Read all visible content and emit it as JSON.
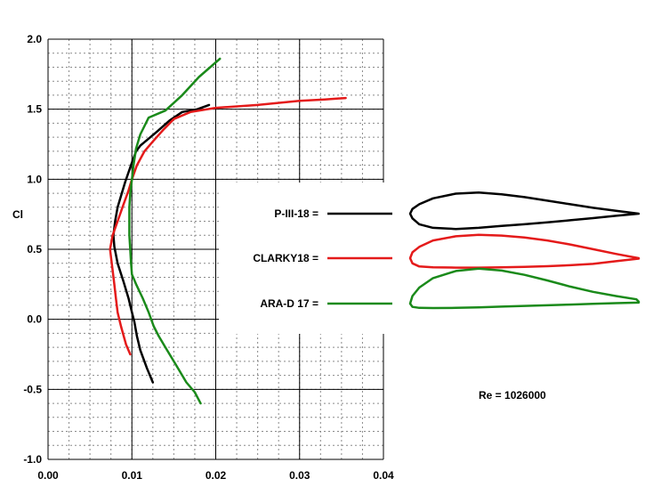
{
  "chart_data": {
    "type": "line",
    "title": "",
    "xlabel": "",
    "ylabel": "Cl",
    "xlim": [
      0,
      0.04
    ],
    "ylim": [
      -1.0,
      2.0
    ],
    "x_ticks": [
      0.0,
      0.01,
      0.02,
      0.03,
      0.04
    ],
    "x_tick_labels": [
      "0.00",
      "0.01",
      "0.02",
      "0.03",
      "0.04"
    ],
    "y_ticks": [
      -1.0,
      -0.5,
      0.0,
      0.5,
      1.0,
      1.5,
      2.0
    ],
    "y_tick_labels": [
      "-1.0",
      "-0.5",
      "0.0",
      "0.5",
      "1.0",
      "1.5",
      "2.0"
    ],
    "grid": true,
    "legend_position": "right",
    "annotation": "Re = 1026000",
    "series": [
      {
        "name": "P-III-18 =",
        "color": "#000000",
        "x": [
          0.0125,
          0.0118,
          0.011,
          0.0106,
          0.0103,
          0.01,
          0.0096,
          0.009,
          0.0083,
          0.0079,
          0.0078,
          0.008,
          0.0083,
          0.0088,
          0.0092,
          0.0096,
          0.01,
          0.0105,
          0.011,
          0.0118,
          0.013,
          0.0145,
          0.016,
          0.0178,
          0.0192
        ],
        "y": [
          -0.45,
          -0.35,
          -0.22,
          -0.12,
          -0.02,
          0.05,
          0.15,
          0.27,
          0.4,
          0.52,
          0.6,
          0.7,
          0.8,
          0.9,
          0.98,
          1.05,
          1.12,
          1.2,
          1.24,
          1.28,
          1.34,
          1.42,
          1.48,
          1.5,
          1.53
        ]
      },
      {
        "name": "CLARKY18 =",
        "color": "#e41a1a",
        "x": [
          0.0098,
          0.0093,
          0.0087,
          0.0083,
          0.0081,
          0.0079,
          0.0077,
          0.0074,
          0.0077,
          0.0083,
          0.009,
          0.0096,
          0.01,
          0.0106,
          0.0115,
          0.0125,
          0.0137,
          0.015,
          0.017,
          0.02,
          0.025,
          0.03,
          0.033,
          0.0355
        ],
        "y": [
          -0.25,
          -0.18,
          -0.05,
          0.05,
          0.15,
          0.25,
          0.35,
          0.5,
          0.6,
          0.7,
          0.82,
          0.92,
          1.0,
          1.1,
          1.2,
          1.27,
          1.35,
          1.43,
          1.48,
          1.51,
          1.53,
          1.56,
          1.57,
          1.58
        ]
      },
      {
        "name": "ARA-D 17 =",
        "color": "#1a8a1a",
        "x": [
          0.0182,
          0.0175,
          0.0165,
          0.0152,
          0.014,
          0.0132,
          0.0126,
          0.012,
          0.0113,
          0.0105,
          0.01,
          0.0099,
          0.0098,
          0.0097,
          0.0097,
          0.0097,
          0.0098,
          0.01,
          0.0102,
          0.0105,
          0.011,
          0.012,
          0.014,
          0.016,
          0.018,
          0.0205
        ],
        "y": [
          -0.6,
          -0.52,
          -0.45,
          -0.32,
          -0.2,
          -0.12,
          -0.05,
          0.05,
          0.15,
          0.25,
          0.32,
          0.4,
          0.5,
          0.6,
          0.7,
          0.8,
          0.9,
          1.0,
          1.1,
          1.22,
          1.32,
          1.44,
          1.49,
          1.6,
          1.73,
          1.86
        ]
      }
    ],
    "airfoil_shapes": [
      {
        "name": "P-III-18 =",
        "color": "#000000",
        "outline": [
          [
            1.0,
            0.0
          ],
          [
            0.9,
            0.012
          ],
          [
            0.8,
            0.025
          ],
          [
            0.7,
            0.04
          ],
          [
            0.6,
            0.055
          ],
          [
            0.5,
            0.07
          ],
          [
            0.4,
            0.082
          ],
          [
            0.3,
            0.09
          ],
          [
            0.2,
            0.085
          ],
          [
            0.1,
            0.065
          ],
          [
            0.04,
            0.04
          ],
          [
            0.01,
            0.02
          ],
          [
            0.0,
            0.0
          ],
          [
            0.01,
            -0.02
          ],
          [
            0.04,
            -0.045
          ],
          [
            0.1,
            -0.06
          ],
          [
            0.2,
            -0.065
          ],
          [
            0.3,
            -0.06
          ],
          [
            0.4,
            -0.052
          ],
          [
            0.5,
            -0.045
          ],
          [
            0.6,
            -0.037
          ],
          [
            0.7,
            -0.028
          ],
          [
            0.8,
            -0.019
          ],
          [
            0.9,
            -0.009
          ],
          [
            1.0,
            0.0
          ]
        ]
      },
      {
        "name": "CLARKY18 =",
        "color": "#e41a1a",
        "outline": [
          [
            1.0,
            0.0
          ],
          [
            0.9,
            0.018
          ],
          [
            0.8,
            0.038
          ],
          [
            0.7,
            0.058
          ],
          [
            0.6,
            0.075
          ],
          [
            0.5,
            0.088
          ],
          [
            0.4,
            0.096
          ],
          [
            0.3,
            0.099
          ],
          [
            0.2,
            0.093
          ],
          [
            0.1,
            0.075
          ],
          [
            0.04,
            0.048
          ],
          [
            0.01,
            0.025
          ],
          [
            0.0,
            0.0
          ],
          [
            0.01,
            -0.022
          ],
          [
            0.04,
            -0.035
          ],
          [
            0.1,
            -0.039
          ],
          [
            0.2,
            -0.04
          ],
          [
            0.3,
            -0.04
          ],
          [
            0.4,
            -0.039
          ],
          [
            0.5,
            -0.037
          ],
          [
            0.6,
            -0.034
          ],
          [
            0.7,
            -0.03
          ],
          [
            0.8,
            -0.024
          ],
          [
            0.9,
            -0.013
          ],
          [
            1.0,
            -0.002
          ]
        ]
      },
      {
        "name": "ARA-D 17 =",
        "color": "#1a8a1a",
        "outline": [
          [
            1.0,
            0.008
          ],
          [
            0.99,
            0.018
          ],
          [
            0.9,
            0.032
          ],
          [
            0.8,
            0.05
          ],
          [
            0.7,
            0.072
          ],
          [
            0.6,
            0.098
          ],
          [
            0.5,
            0.122
          ],
          [
            0.4,
            0.14
          ],
          [
            0.3,
            0.148
          ],
          [
            0.2,
            0.138
          ],
          [
            0.1,
            0.108
          ],
          [
            0.04,
            0.068
          ],
          [
            0.01,
            0.032
          ],
          [
            0.0,
            0.0
          ],
          [
            0.01,
            -0.014
          ],
          [
            0.04,
            -0.018
          ],
          [
            0.1,
            -0.019
          ],
          [
            0.2,
            -0.018
          ],
          [
            0.3,
            -0.016
          ],
          [
            0.4,
            -0.013
          ],
          [
            0.5,
            -0.01
          ],
          [
            0.6,
            -0.007
          ],
          [
            0.7,
            -0.004
          ],
          [
            0.8,
            -0.001
          ],
          [
            0.9,
            0.002
          ],
          [
            1.0,
            0.004
          ]
        ]
      }
    ]
  }
}
